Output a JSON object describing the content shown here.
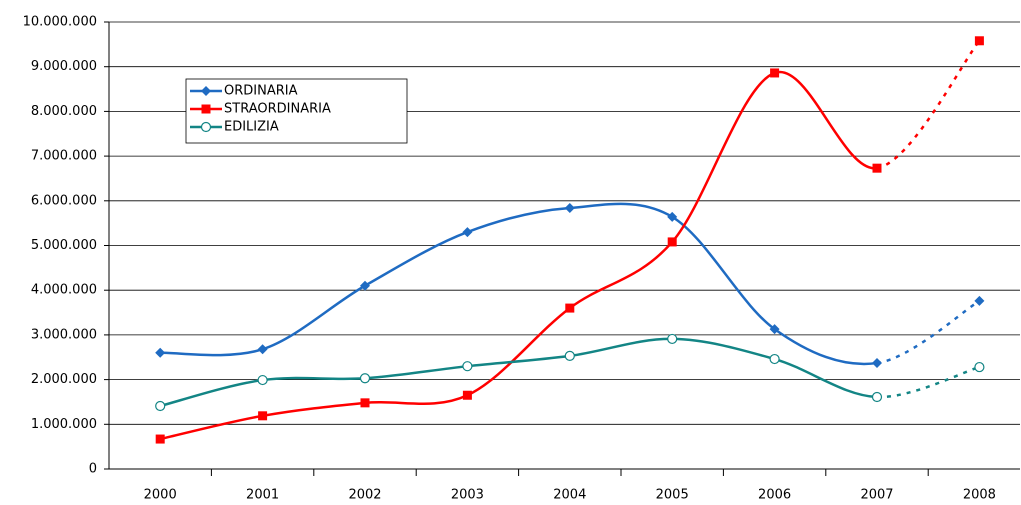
{
  "chart_data": {
    "type": "line",
    "categories": [
      "2000",
      "2001",
      "2002",
      "2003",
      "2004",
      "2005",
      "2006",
      "2007",
      "2008"
    ],
    "series": [
      {
        "name": "ORDINARIA",
        "color": "#1f6bc2",
        "marker": "diamond",
        "values": [
          2600000,
          2680000,
          4100000,
          5300000,
          5840000,
          5640000,
          3130000,
          2370000,
          3760000
        ]
      },
      {
        "name": "STRAORDINARIA",
        "color": "#ff0000",
        "marker": "square",
        "values": [
          670000,
          1190000,
          1480000,
          1650000,
          3600000,
          5080000,
          8860000,
          6730000,
          9580000
        ]
      },
      {
        "name": "EDILIZIA",
        "color": "#138585",
        "marker": "circle",
        "values": [
          1410000,
          1990000,
          2030000,
          2300000,
          2530000,
          2910000,
          2460000,
          1610000,
          2280000
        ]
      }
    ],
    "ylim": [
      0,
      10000000
    ],
    "yticks": [
      0,
      {
        "value": 1000000,
        "label": "1.000.000"
      },
      {
        "value": 2000000,
        "label": "2.000.000"
      },
      {
        "value": 3000000,
        "label": "3.000.000"
      },
      {
        "value": 4000000,
        "label": "4.000.000"
      },
      {
        "value": 5000000,
        "label": "5.000.000"
      },
      {
        "value": 6000000,
        "label": "6.000.000"
      },
      {
        "value": 7000000,
        "label": "7.000.000"
      },
      {
        "value": 8000000,
        "label": "8.000.000"
      },
      {
        "value": 9000000,
        "label": "9.000.000"
      },
      {
        "value": 10000000,
        "label": "10.000.000"
      }
    ],
    "grid": true,
    "smooth": true,
    "dashed_last_segment": true,
    "legend": "upper left"
  }
}
